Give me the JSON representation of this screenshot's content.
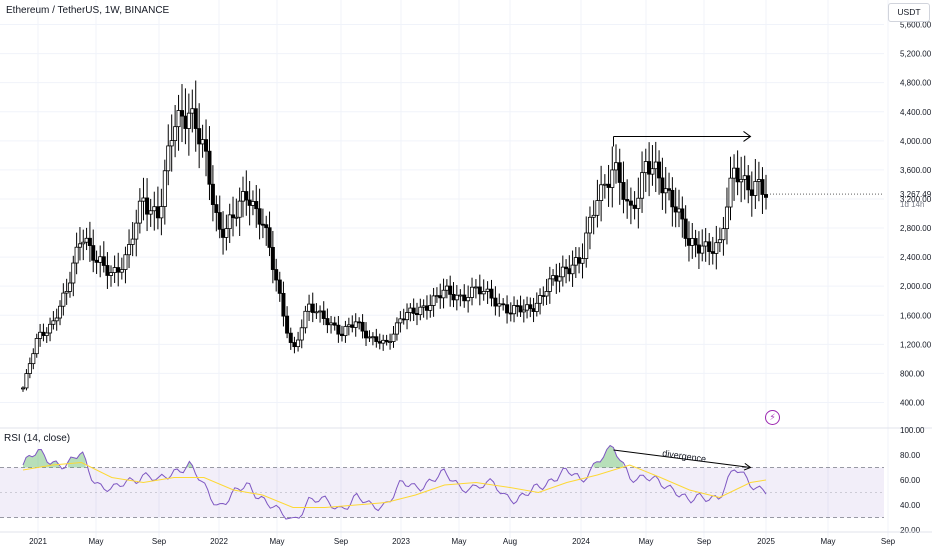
{
  "header": {
    "symbol_title": "Ethereum / TetherUS, 1W, BINANCE",
    "currency_button": "USDT",
    "alert_icon": "lightning-icon"
  },
  "chart_data": [
    {
      "type": "candlestick",
      "title": "Ethereum / TetherUS, 1W, BINANCE",
      "y_axis_ticks": [
        5600,
        5200,
        4800,
        4400,
        4000,
        3600,
        3200,
        2800,
        2400,
        2000,
        1600,
        1200,
        800,
        400
      ],
      "y_axis_tick_labels": [
        "5,600.00",
        "5,200.00",
        "4,800.00",
        "4,400.00",
        "4,000.00",
        "3,600.00",
        "3,200.00",
        "2,800.00",
        "2,400.00",
        "2,000.00",
        "1,600.00",
        "1,200.00",
        "800.00",
        "400.00"
      ],
      "ylim": [
        90,
        5800
      ],
      "x_axis_labels": [
        "2021",
        "May",
        "Sep",
        "2022",
        "May",
        "Sep",
        "2023",
        "May",
        "Aug",
        "2024",
        "May",
        "Sep",
        "2025",
        "May",
        "Sep"
      ],
      "last_price": "3,267.49",
      "countdown": "1d 14h",
      "annotation": {
        "type": "arrow",
        "from": {
          "period": "2024-03",
          "value": 4060
        },
        "to": {
          "period": "2024-12",
          "value": 4060
        }
      },
      "close_path": [
        [
          "2020-12",
          600
        ],
        [
          "2021-01",
          1300
        ],
        [
          "2021-02",
          1500
        ],
        [
          "2021-03",
          1900
        ],
        [
          "2021-04",
          2800
        ],
        [
          "2021-05",
          2300
        ],
        [
          "2021-06",
          2200
        ],
        [
          "2021-07",
          2400
        ],
        [
          "2021-08",
          3200
        ],
        [
          "2021-09",
          3000
        ],
        [
          "2021-10",
          4200
        ],
        [
          "2021-11",
          4500
        ],
        [
          "2021-12",
          3800
        ],
        [
          "2022-01",
          2800
        ],
        [
          "2022-02",
          2900
        ],
        [
          "2022-03",
          3300
        ],
        [
          "2022-04",
          2900
        ],
        [
          "2022-05",
          2000
        ],
        [
          "2022-06",
          1100
        ],
        [
          "2022-07",
          1700
        ],
        [
          "2022-08",
          1600
        ],
        [
          "2022-09",
          1300
        ],
        [
          "2022-10",
          1550
        ],
        [
          "2022-11",
          1250
        ],
        [
          "2022-12",
          1200
        ],
        [
          "2023-01",
          1580
        ],
        [
          "2023-02",
          1620
        ],
        [
          "2023-03",
          1800
        ],
        [
          "2023-04",
          1900
        ],
        [
          "2023-05",
          1870
        ],
        [
          "2023-06",
          1930
        ],
        [
          "2023-07",
          1850
        ],
        [
          "2023-08",
          1650
        ],
        [
          "2023-09",
          1670
        ],
        [
          "2023-10",
          1800
        ],
        [
          "2023-11",
          2050
        ],
        [
          "2023-12",
          2300
        ],
        [
          "2024-01",
          2300
        ],
        [
          "2024-02",
          3300
        ],
        [
          "2024-03",
          3600
        ],
        [
          "2024-04",
          3000
        ],
        [
          "2024-05",
          3700
        ],
        [
          "2024-06",
          3400
        ],
        [
          "2024-07",
          3200
        ],
        [
          "2024-08",
          2500
        ],
        [
          "2024-09",
          2600
        ],
        [
          "2024-10",
          2500
        ],
        [
          "2024-11",
          3700
        ],
        [
          "2024-12",
          3330
        ],
        [
          "2025-01",
          3267
        ]
      ]
    },
    {
      "type": "line",
      "title": "RSI (14, close)",
      "y_axis_ticks": [
        100,
        80,
        60,
        40,
        20
      ],
      "y_axis_tick_labels": [
        "100.00",
        "80.00",
        "60.00",
        "40.00",
        "20.00"
      ],
      "ylim": [
        20,
        100
      ],
      "band": [
        30,
        70
      ],
      "midline": 50,
      "annotation_label": "divergence",
      "series": [
        {
          "values": [
            [
              "2020-12",
              72
            ],
            [
              "2021-01",
              82
            ],
            [
              "2021-02",
              76
            ],
            [
              "2021-03",
              70
            ],
            [
              "2021-04",
              82
            ],
            [
              "2021-05",
              58
            ],
            [
              "2021-06",
              50
            ],
            [
              "2021-07",
              60
            ],
            [
              "2021-08",
              64
            ],
            [
              "2021-09",
              58
            ],
            [
              "2021-10",
              68
            ],
            [
              "2021-11",
              72
            ],
            [
              "2021-12",
              54
            ],
            [
              "2022-01",
              40
            ],
            [
              "2022-02",
              48
            ],
            [
              "2022-03",
              56
            ],
            [
              "2022-04",
              46
            ],
            [
              "2022-05",
              34
            ],
            [
              "2022-06",
              28
            ],
            [
              "2022-07",
              44
            ],
            [
              "2022-08",
              42
            ],
            [
              "2022-09",
              38
            ],
            [
              "2022-10",
              46
            ],
            [
              "2022-11",
              38
            ],
            [
              "2022-12",
              42
            ],
            [
              "2023-01",
              56
            ],
            [
              "2023-02",
              54
            ],
            [
              "2023-03",
              60
            ],
            [
              "2023-04",
              64
            ],
            [
              "2023-05",
              56
            ],
            [
              "2023-06",
              54
            ],
            [
              "2023-07",
              56
            ],
            [
              "2023-08",
              46
            ],
            [
              "2023-09",
              46
            ],
            [
              "2023-10",
              54
            ],
            [
              "2023-11",
              62
            ],
            [
              "2023-12",
              66
            ],
            [
              "2024-01",
              60
            ],
            [
              "2024-02",
              76
            ],
            [
              "2024-03",
              84
            ],
            [
              "2024-04",
              64
            ],
            [
              "2024-05",
              62
            ],
            [
              "2024-06",
              56
            ],
            [
              "2024-07",
              54
            ],
            [
              "2024-08",
              42
            ],
            [
              "2024-09",
              46
            ],
            [
              "2024-10",
              48
            ],
            [
              "2024-11",
              68
            ],
            [
              "2024-12",
              58
            ],
            [
              "2025-01",
              52
            ]
          ]
        },
        {
          "values": [
            [
              "2020-12",
              68
            ],
            [
              "2021-02",
              72
            ],
            [
              "2021-04",
              74
            ],
            [
              "2021-06",
              62
            ],
            [
              "2021-08",
              58
            ],
            [
              "2021-10",
              62
            ],
            [
              "2021-12",
              62
            ],
            [
              "2022-02",
              52
            ],
            [
              "2022-04",
              48
            ],
            [
              "2022-06",
              38
            ],
            [
              "2022-08",
              38
            ],
            [
              "2022-10",
              40
            ],
            [
              "2022-12",
              42
            ],
            [
              "2023-02",
              48
            ],
            [
              "2023-04",
              56
            ],
            [
              "2023-06",
              58
            ],
            [
              "2023-08",
              54
            ],
            [
              "2023-10",
              50
            ],
            [
              "2023-12",
              58
            ],
            [
              "2024-02",
              64
            ],
            [
              "2024-04",
              72
            ],
            [
              "2024-06",
              62
            ],
            [
              "2024-08",
              52
            ],
            [
              "2024-10",
              46
            ],
            [
              "2024-12",
              58
            ],
            [
              "2025-01",
              60
            ]
          ]
        }
      ]
    }
  ]
}
